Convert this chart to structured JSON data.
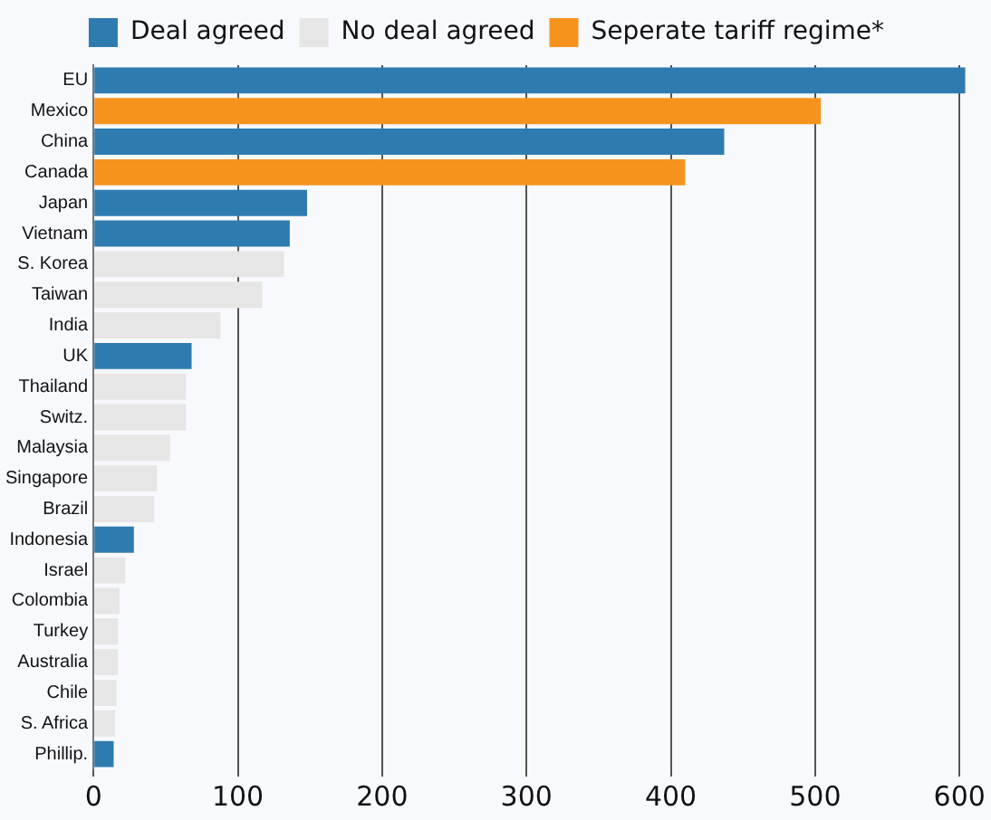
{
  "chart_data": {
    "type": "bar",
    "orientation": "horizontal",
    "categories": [
      "EU",
      "Mexico",
      "China",
      "Canada",
      "Japan",
      "Vietnam",
      "S. Korea",
      "Taiwan",
      "India",
      "UK",
      "Thailand",
      "Switz.",
      "Malaysia",
      "Singapore",
      "Brazil",
      "Indonesia",
      "Israel",
      "Colombia",
      "Turkey",
      "Australia",
      "Chile",
      "S. Africa",
      "Phillip."
    ],
    "series": [
      {
        "name": "Deal agreed",
        "color": "#2e7bb0",
        "values": [
          604,
          null,
          437,
          null,
          148,
          136,
          null,
          null,
          null,
          68,
          null,
          null,
          null,
          null,
          null,
          28,
          null,
          null,
          null,
          null,
          null,
          null,
          14
        ]
      },
      {
        "name": "No deal agreed",
        "color": "#e6e6e6",
        "values": [
          null,
          null,
          null,
          null,
          null,
          null,
          132,
          117,
          88,
          null,
          64,
          64,
          53,
          44,
          42,
          null,
          22,
          18,
          17,
          17,
          16,
          15,
          null
        ]
      },
      {
        "name": "Seperate tariff regime*",
        "color": "#f6931f",
        "values": [
          null,
          504,
          null,
          410,
          null,
          null,
          null,
          null,
          null,
          null,
          null,
          null,
          null,
          null,
          null,
          null,
          null,
          null,
          null,
          null,
          null,
          null,
          null
        ]
      }
    ],
    "xlim": [
      0,
      606
    ],
    "xticks": [
      0,
      100,
      200,
      300,
      400,
      500,
      600
    ],
    "grid": "x",
    "legend": "top"
  }
}
